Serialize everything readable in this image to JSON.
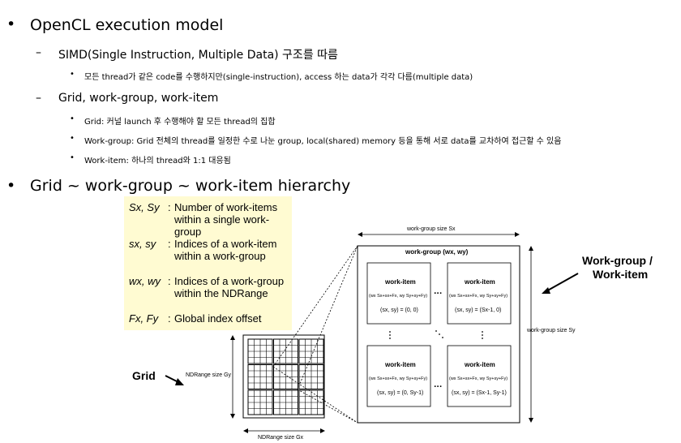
{
  "section1": {
    "title": "OpenCL execution model",
    "sub1": {
      "text": "SIMD(Single Instruction, Multiple Data) 구조를 따름",
      "items": [
        "모든 thread가 같은 code를 수행하지만(single-instruction), access 하는 data가 각각 다름(multiple data)"
      ]
    },
    "sub2": {
      "text": "Grid, work-group, work-item",
      "items": [
        "Grid: 커널 launch 후 수행해야 할 모든 thread의 집합",
        "Work-group: Grid 전체의 thread를 일정한 수로 나눈 group, local(shared) memory 등을 통해 서로 data를 교차하여 접근할 수 있음",
        "Work-item: 하나의 thread와 1:1 대응됨"
      ]
    }
  },
  "section2": {
    "title": "Grid ~ work-group ~ work-item hierarchy"
  },
  "legend": [
    {
      "sym": "Sx, Sy",
      "desc": "Number of work-items within a single work-group"
    },
    {
      "sym": "sx, sy",
      "desc": "Indices of a work-item within a work-group"
    },
    {
      "sym": "wx, wy",
      "desc": "Indices of a work-group within the NDRange"
    },
    {
      "sym": "Fx, Fy",
      "desc": "Global index offset"
    }
  ],
  "diagram": {
    "grid_label": "Grid",
    "ndrange_y": "NDRange size Gy",
    "ndrange_x": "NDRange size Gx",
    "wg_size_x": "work-group size Sx",
    "wg_size_y": "work-group size Sy",
    "wg_title": "work-group (wx, wy)",
    "side_label_1": "Work-group /",
    "side_label_2": "Work-item",
    "items": [
      {
        "title": "work-item",
        "formula": "(wx Sx+sx+Fx, wy Sy+sy+Fy)",
        "idx": "(sx, sy) = (0, 0)"
      },
      {
        "title": "work-item",
        "formula": "(wx Sx+sx+Fx, wy Sy+sy+Fy)",
        "idx": "(sx, sy) = (Sx-1, 0)"
      },
      {
        "title": "work-item",
        "formula": "(wx Sx+sx+Fx, wy Sy+sy+Fy)",
        "idx": "(sx, sy) = (0, Sy-1)"
      },
      {
        "title": "work-item",
        "formula": "(wx Sx+sx+Fx, wy Sy+sy+Fy)",
        "idx": "(sx, sy) = (Sx-1, Sy-1)"
      }
    ],
    "dots": "..."
  }
}
